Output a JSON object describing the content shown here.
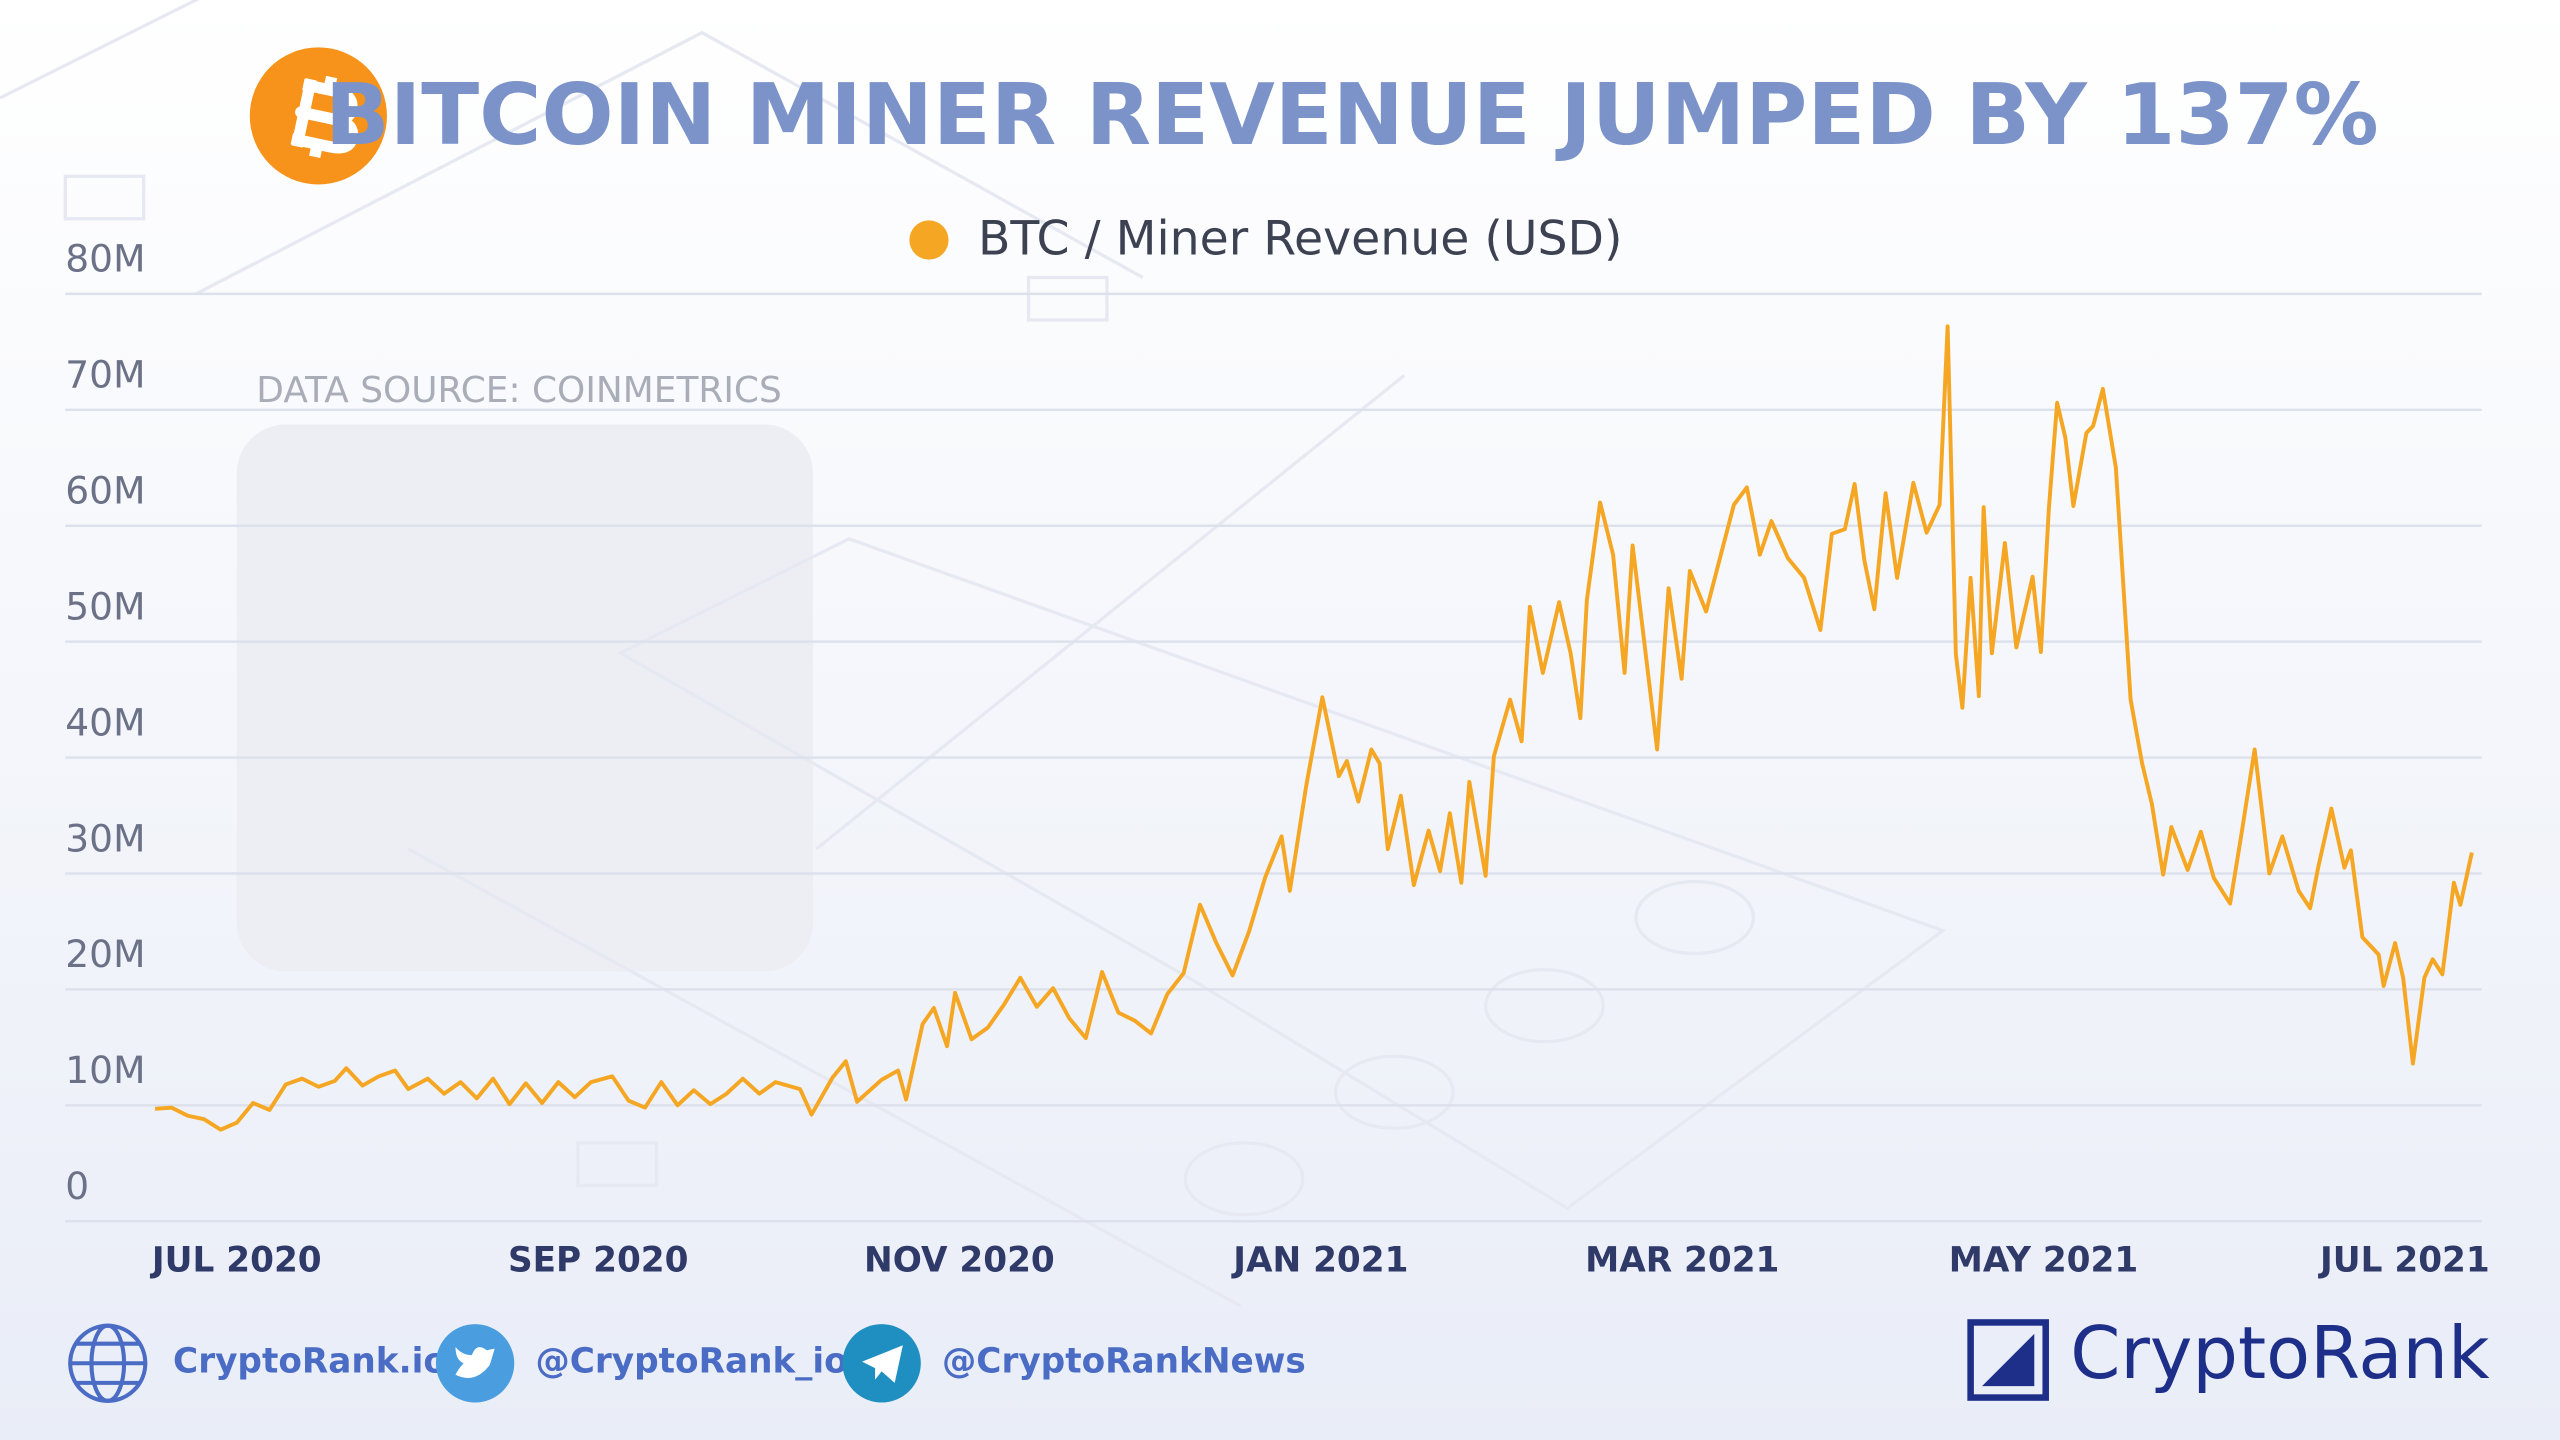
{
  "chart_data": {
    "type": "line",
    "title": "BITCOIN MINER REVENUE JUMPED BY 137%",
    "annotation": "DATA SOURCE: COINMETRICS",
    "legend": "top",
    "grid": true,
    "xlim": [
      2020.4209,
      2021.5354
    ],
    "xticks": [
      {
        "value": 2020.5,
        "label": "JUL 2020"
      },
      {
        "value": 2020.6667,
        "label": "SEP 2020"
      },
      {
        "value": 2020.8333,
        "label": "NOV 2020"
      },
      {
        "value": 2021,
        "label": "JAN 2021"
      },
      {
        "value": 2021.1667,
        "label": "MAR 2021"
      },
      {
        "value": 2021.3333,
        "label": "MAY 2021"
      },
      {
        "value": 2021.5,
        "label": "JUL 2021"
      }
    ],
    "ylim": [
      0,
      80000000
    ],
    "yticks": [
      0,
      {
        "value": 10000000,
        "label": "10M"
      },
      {
        "value": 20000000,
        "label": "20M"
      },
      {
        "value": 30000000,
        "label": "30M"
      },
      {
        "value": 40000000,
        "label": "40M"
      },
      {
        "value": 50000000,
        "label": "50M"
      },
      {
        "value": 60000000,
        "label": "60M"
      },
      {
        "value": 70000000,
        "label": "70M"
      },
      {
        "value": 80000000,
        "label": "80M"
      }
    ],
    "x": [
      2020.4623,
      2020.4699,
      2020.4774,
      2020.4849,
      2020.4925,
      2020.5,
      2020.5075,
      2020.5151,
      2020.5226,
      2020.5301,
      2020.5377,
      2020.5452,
      2020.5505,
      2020.558,
      2020.5655,
      2020.573,
      2020.5791,
      2020.5881,
      2020.5956,
      2020.6032,
      2020.6107,
      2020.6182,
      2020.6258,
      2020.6333,
      2020.6408,
      2020.6483,
      2020.6559,
      2020.6634,
      2020.6732,
      2020.6807,
      2020.6883,
      2020.6958,
      2020.7033,
      2020.7108,
      2020.7184,
      2020.7259,
      2020.7334,
      2020.741,
      2020.7485,
      2020.7598,
      2020.7651,
      2020.7748,
      2020.7809,
      2020.7861,
      2020.7974,
      2020.805,
      2020.8087,
      2020.8163,
      2020.8215,
      2020.8276,
      2020.8313,
      2020.8389,
      2020.8464,
      2020.8539,
      2020.8614,
      2020.869,
      2020.8765,
      2020.884,
      2020.8916,
      2020.8991,
      2020.9066,
      2020.9142,
      2020.9217,
      2020.9292,
      2020.9367,
      2020.9443,
      2020.9518,
      2020.9593,
      2020.9669,
      2020.9744,
      2020.9819,
      2020.9857,
      2020.9932,
      2021.0007,
      2021.0083,
      2021.012,
      2021.0173,
      2021.0233,
      2021.0271,
      2021.0309,
      2021.0369,
      2021.0429,
      2021.0497,
      2021.055,
      2021.0595,
      2021.0648,
      2021.0685,
      2021.076,
      2021.0798,
      2021.0873,
      2021.0926,
      2021.0964,
      2021.1024,
      2021.1099,
      2021.1152,
      2021.1197,
      2021.1227,
      2021.1288,
      2021.1348,
      2021.1401,
      2021.1438,
      2021.1498,
      2021.1551,
      2021.1604,
      2021.1664,
      2021.1702,
      2021.1777,
      2021.1852,
      2021.1905,
      2021.1965,
      2021.2025,
      2021.2078,
      2021.2154,
      2021.2229,
      2021.2304,
      2021.2357,
      2021.2417,
      2021.2462,
      2021.2507,
      2021.2553,
      2021.2605,
      2021.2658,
      2021.2733,
      2021.2794,
      2021.2854,
      2021.2891,
      2021.2929,
      2021.2959,
      2021.2997,
      2021.3035,
      2021.3057,
      2021.3095,
      2021.3155,
      2021.3208,
      2021.3283,
      2021.3321,
      2021.3358,
      2021.3396,
      2021.3434,
      2021.3471,
      2021.3531,
      2021.3562,
      2021.3607,
      2021.3667,
      2021.3735,
      2021.3788,
      2021.3833,
      2021.3885,
      2021.3923,
      2021.3998,
      2021.4059,
      2021.4119,
      2021.4194,
      2021.4247,
      2021.4307,
      2021.4375,
      2021.4435,
      2021.451,
      2021.4563,
      2021.4601,
      2021.4661,
      2021.4721,
      2021.4751,
      2021.4804,
      2021.4879,
      2021.4902,
      2021.4955,
      2021.4992,
      2021.5037,
      2021.509,
      2021.5128,
      2021.5173,
      2021.5226,
      2021.5256,
      2021.5309
    ],
    "series": [
      {
        "name": "BTC / Miner Revenue (USD)",
        "color": "#f5a623",
        "values": [
          9700000,
          9800000,
          9100000,
          8800000,
          7900000,
          8500000,
          10200000,
          9600000,
          11800000,
          12300000,
          11600000,
          12100000,
          13200000,
          11700000,
          12500000,
          13000000,
          11400000,
          12300000,
          11000000,
          12000000,
          10600000,
          12300000,
          10100000,
          11900000,
          10200000,
          12000000,
          10700000,
          12000000,
          12500000,
          10400000,
          9800000,
          12000000,
          10000000,
          11300000,
          10100000,
          11000000,
          12300000,
          11000000,
          12000000,
          11400000,
          9200000,
          12400000,
          13800000,
          10300000,
          12200000,
          13000000,
          10500000,
          17000000,
          18400000,
          15100000,
          19700000,
          15700000,
          16700000,
          18700000,
          21000000,
          18500000,
          20100000,
          17500000,
          15800000,
          21500000,
          18000000,
          17300000,
          16200000,
          19600000,
          21400000,
          27300000,
          24000000,
          21200000,
          25000000,
          29700000,
          33200000,
          28500000,
          37500000,
          45200000,
          38400000,
          39700000,
          36200000,
          40700000,
          39500000,
          32100000,
          36700000,
          29000000,
          33700000,
          30200000,
          35200000,
          29200000,
          37900000,
          29800000,
          40100000,
          45000000,
          41400000,
          53000000,
          47300000,
          53400000,
          49000000,
          43400000,
          53600000,
          62000000,
          57500000,
          47300000,
          58300000,
          49000000,
          40700000,
          54600000,
          46800000,
          56100000,
          52600000,
          58000000,
          61800000,
          63300000,
          57500000,
          60400000,
          57200000,
          55500000,
          51000000,
          59300000,
          59700000,
          63600000,
          57000000,
          52800000,
          62800000,
          55500000,
          63700000,
          59400000,
          61800000,
          77200000,
          48900000,
          44300000,
          55500000,
          45300000,
          61600000,
          49000000,
          58500000,
          49500000,
          55600000,
          49100000,
          61500000,
          70600000,
          67600000,
          61700000,
          68000000,
          68600000,
          71800000,
          65000000,
          45000000,
          39500000,
          36000000,
          29900000,
          34000000,
          30300000,
          33600000,
          29600000,
          27400000,
          33500000,
          40700000,
          30000000,
          33200000,
          28500000,
          27000000,
          30600000,
          35600000,
          30500000,
          32000000,
          24500000,
          23000000,
          20300000,
          24000000,
          21000000,
          13600000,
          21000000,
          22600000,
          21300000,
          29200000,
          27300000,
          31800000
        ]
      }
    ]
  },
  "footer": {
    "website": "CryptoRank.io",
    "twitter": "@CryptoRank_io",
    "telegram": "@CryptoRankNews",
    "brand": "CryptoRank"
  }
}
